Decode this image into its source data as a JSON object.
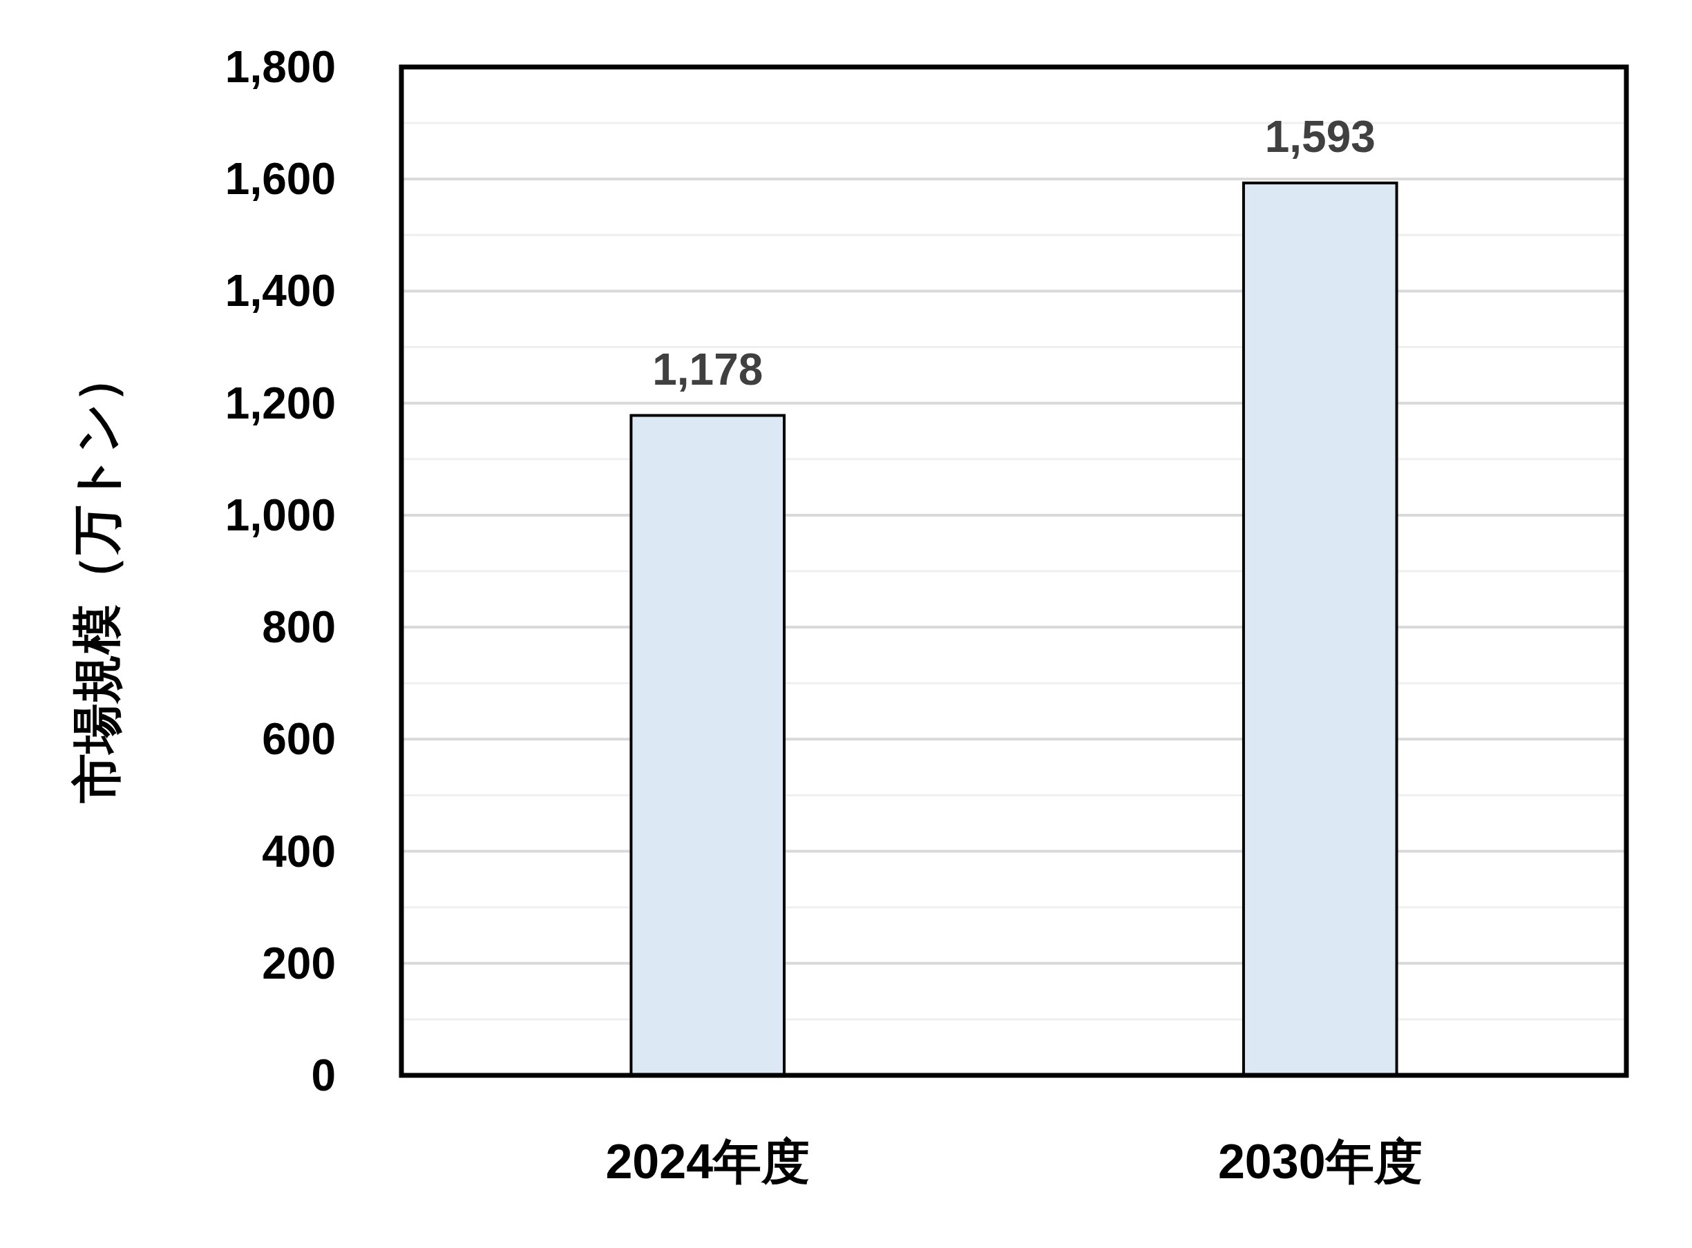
{
  "chart_data": {
    "type": "bar",
    "ylabel": "市場規模（万トン）",
    "categories": [
      "2024年度",
      "2030年度"
    ],
    "values": [
      1178,
      1593
    ],
    "color": "#dce9f5",
    "value_labels": [
      "1,178",
      "1,593"
    ],
    "ylim": [
      0,
      1800
    ],
    "yticks": [
      {
        "value": 0,
        "label": "0"
      },
      {
        "value": 100,
        "label": null
      },
      {
        "value": 200,
        "label": "200"
      },
      {
        "value": 300,
        "label": null
      },
      {
        "value": 400,
        "label": "400"
      },
      {
        "value": 500,
        "label": null
      },
      {
        "value": 600,
        "label": "600"
      },
      {
        "value": 700,
        "label": null
      },
      {
        "value": 800,
        "label": "800"
      },
      {
        "value": 900,
        "label": null
      },
      {
        "value": 1000,
        "label": "1,000"
      },
      {
        "value": 1100,
        "label": null
      },
      {
        "value": 1200,
        "label": "1,200"
      },
      {
        "value": 1300,
        "label": null
      },
      {
        "value": 1400,
        "label": "1,400"
      },
      {
        "value": 1500,
        "label": null
      },
      {
        "value": 1600,
        "label": "1,600"
      },
      {
        "value": 1700,
        "label": null
      },
      {
        "value": 1800,
        "label": "1,800"
      }
    ],
    "grid": "y"
  }
}
